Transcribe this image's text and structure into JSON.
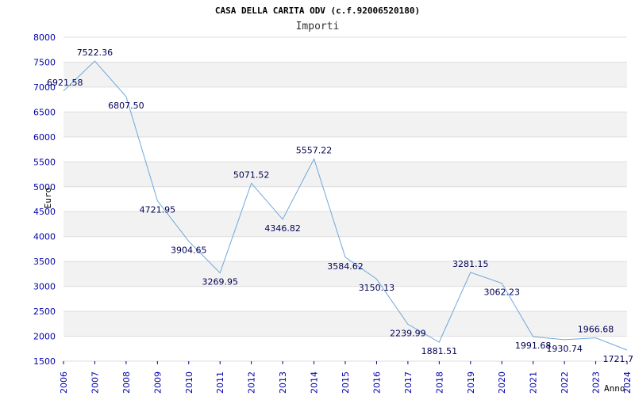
{
  "chart_data": {
    "type": "line",
    "title": "CASA DELLA CARITA ODV (c.f.92006520180)",
    "subtitle": "Importi",
    "xlabel": "Anno",
    "ylabel": "Euro",
    "ylim": [
      1500,
      8000
    ],
    "yticks": [
      1500,
      2000,
      2500,
      3000,
      3500,
      4000,
      4500,
      5000,
      5500,
      6000,
      6500,
      7000,
      7500,
      8000
    ],
    "grid": true,
    "x": [
      2006,
      2007,
      2008,
      2009,
      2010,
      2011,
      2012,
      2013,
      2014,
      2015,
      2016,
      2017,
      2018,
      2019,
      2020,
      2021,
      2022,
      2023,
      2024
    ],
    "values": [
      6921.58,
      7522.36,
      6807.5,
      4721.95,
      3904.65,
      3269.95,
      5071.52,
      4346.82,
      5557.22,
      3584.62,
      3150.13,
      2239.99,
      1881.51,
      3281.15,
      3062.23,
      1991.68,
      1930.74,
      1966.68,
      1721.7
    ],
    "data_labels": [
      "6921.58",
      "7522.36",
      "6807.50",
      "4721.95",
      "3904.65",
      "3269.95",
      "5071.52",
      "4346.82",
      "5557.22",
      "3584.62",
      "3150.13",
      "2239.99",
      "1881.51",
      "3281.15",
      "3062.23",
      "1991.68",
      "1930.74",
      "1966.68",
      "1721.7"
    ],
    "colors": {
      "line": "#6fa8dc",
      "band": "#f2f2f2",
      "grid": "#dddddd",
      "tick": "#0000aa"
    }
  }
}
